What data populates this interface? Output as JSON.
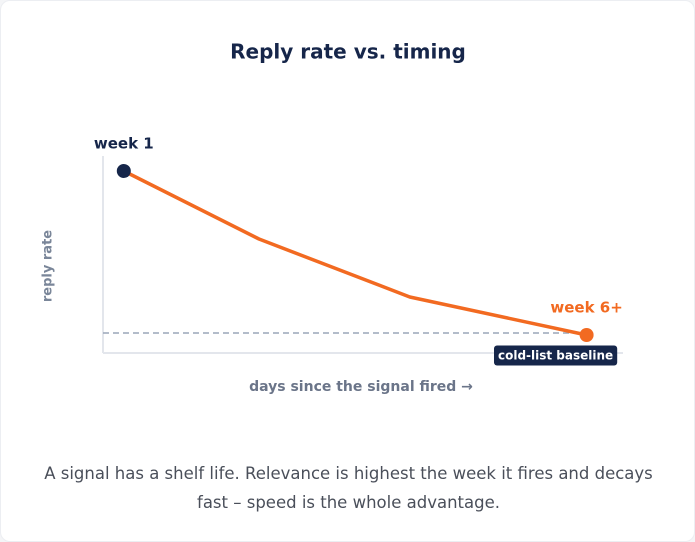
{
  "chart_data": {
    "type": "line",
    "title": "Reply rate vs. timing",
    "x_label": "days since the signal fired →",
    "y_label": "reply rate",
    "x": [
      4,
      30,
      59,
      93
    ],
    "series": [
      {
        "color": "#f26a21",
        "values": [
          91,
          57,
          28,
          9
        ]
      }
    ],
    "xlim": [
      0,
      100
    ],
    "ylim": [
      0,
      100
    ],
    "baseline": {
      "label": "cold-list baseline",
      "value": 10,
      "color": "#9aa5b8"
    },
    "annotations": [
      {
        "text": "week 1",
        "point": 0,
        "color": "#16264a"
      },
      {
        "text": "week 6+",
        "point": 3,
        "color": "#f26a21"
      }
    ]
  },
  "caption": "A signal has a shelf life. Relevance is highest the week it fires and decays fast – speed is the whole advantage."
}
